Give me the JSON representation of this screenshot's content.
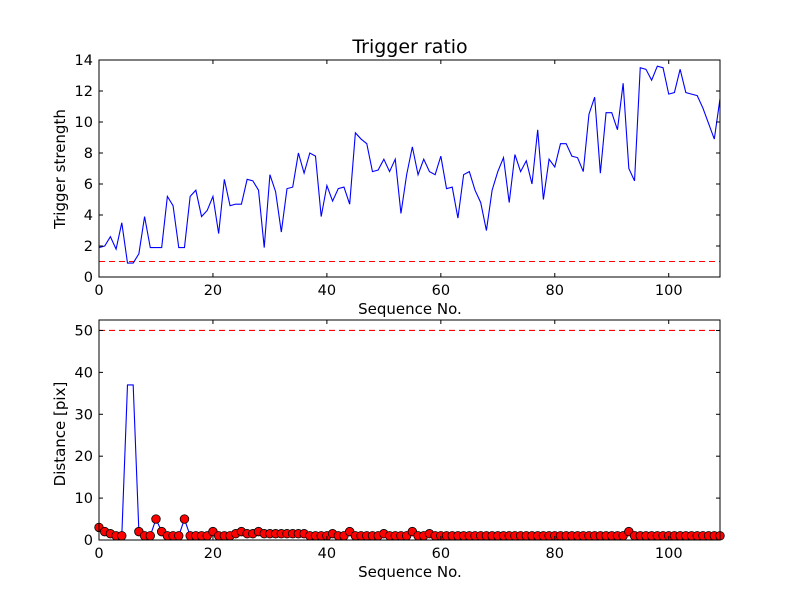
{
  "chart_data": [
    {
      "type": "line",
      "title": "Trigger ratio",
      "xlabel": "Sequence No.",
      "ylabel": "Trigger strength",
      "xlim": [
        0,
        109
      ],
      "ylim": [
        0,
        14
      ],
      "xticks": [
        0,
        20,
        40,
        60,
        80,
        100
      ],
      "yticks": [
        0,
        2,
        4,
        6,
        8,
        10,
        12,
        14
      ],
      "threshold": 1,
      "series": [
        {
          "color": "#0000ff",
          "x": [
            0,
            1,
            2,
            3,
            4,
            5,
            6,
            7,
            8,
            9,
            10,
            11,
            12,
            13,
            14,
            15,
            16,
            17,
            18,
            19,
            20,
            21,
            22,
            23,
            24,
            25,
            26,
            27,
            28,
            29,
            30,
            31,
            32,
            33,
            34,
            35,
            36,
            37,
            38,
            39,
            40,
            41,
            42,
            43,
            44,
            45,
            46,
            47,
            48,
            49,
            50,
            51,
            52,
            53,
            54,
            55,
            56,
            57,
            58,
            59,
            60,
            61,
            62,
            63,
            64,
            65,
            66,
            67,
            68,
            69,
            70,
            71,
            72,
            73,
            74,
            75,
            76,
            77,
            78,
            79,
            80,
            81,
            82,
            83,
            84,
            85,
            86,
            87,
            88,
            89,
            90,
            91,
            92,
            93,
            94,
            95,
            96,
            97,
            98,
            99,
            100,
            101,
            102,
            103,
            104,
            105,
            106,
            107,
            108,
            109
          ],
          "y": [
            1.9,
            2.0,
            2.6,
            1.8,
            3.5,
            0.9,
            0.9,
            1.5,
            3.9,
            1.9,
            1.9,
            1.9,
            5.2,
            4.6,
            1.9,
            1.9,
            5.2,
            5.6,
            3.9,
            4.3,
            5.2,
            2.8,
            6.3,
            4.6,
            4.7,
            4.7,
            6.3,
            6.2,
            5.6,
            1.9,
            6.6,
            5.5,
            2.9,
            5.7,
            5.8,
            8.0,
            6.7,
            8.0,
            7.8,
            3.9,
            5.9,
            4.9,
            5.7,
            5.8,
            4.7,
            9.3,
            8.9,
            8.6,
            6.8,
            6.9,
            7.6,
            6.8,
            7.6,
            4.1,
            6.6,
            8.4,
            6.6,
            7.6,
            6.8,
            6.6,
            7.8,
            5.7,
            5.8,
            3.8,
            6.6,
            6.8,
            5.6,
            4.8,
            3.0,
            5.6,
            6.8,
            7.7,
            4.8,
            7.9,
            6.8,
            7.5,
            6.0,
            9.5,
            5.0,
            7.6,
            7.1,
            8.6,
            8.6,
            7.8,
            7.7,
            6.8,
            10.5,
            11.6,
            6.7,
            10.6,
            10.6,
            9.5,
            12.5,
            7.0,
            6.2,
            13.5,
            13.4,
            12.7,
            13.6,
            13.5,
            11.8,
            11.9,
            13.4,
            11.9,
            11.8,
            11.7,
            10.9,
            9.9,
            8.9,
            11.5
          ]
        }
      ]
    },
    {
      "type": "line",
      "title": "",
      "xlabel": "Sequence No.",
      "ylabel": "Distance [pix]",
      "xlim": [
        0,
        109
      ],
      "ylim": [
        0,
        52.5
      ],
      "xticks": [
        0,
        20,
        40,
        60,
        80,
        100
      ],
      "yticks": [
        0,
        10,
        20,
        30,
        40,
        50
      ],
      "threshold": 50,
      "series": [
        {
          "color": "#0000ff",
          "x": [
            0,
            1,
            2,
            3,
            4,
            5,
            6,
            7,
            8,
            9,
            10,
            11,
            12,
            13,
            14,
            15,
            16,
            17,
            18,
            19,
            20,
            21,
            22,
            23,
            24,
            25,
            26,
            27,
            28,
            29,
            30,
            31,
            32,
            33,
            34,
            35,
            36,
            37,
            38,
            39,
            40,
            41,
            42,
            43,
            44,
            45,
            46,
            47,
            48,
            49,
            50,
            51,
            52,
            53,
            54,
            55,
            56,
            57,
            58,
            59,
            60,
            61,
            62,
            63,
            64,
            65,
            66,
            67,
            68,
            69,
            70,
            71,
            72,
            73,
            74,
            75,
            76,
            77,
            78,
            79,
            80,
            81,
            82,
            83,
            84,
            85,
            86,
            87,
            88,
            89,
            90,
            91,
            92,
            93,
            94,
            95,
            96,
            97,
            98,
            99,
            100,
            101,
            102,
            103,
            104,
            105,
            106,
            107,
            108,
            109
          ],
          "y": [
            3,
            2,
            1.5,
            1,
            1,
            37,
            37,
            2,
            1,
            1,
            5,
            2,
            1,
            1,
            1,
            5,
            1,
            1,
            1,
            1,
            2,
            1,
            1,
            1,
            1.5,
            2,
            1.5,
            1.5,
            2,
            1.5,
            1.5,
            1.5,
            1.5,
            1.5,
            1.5,
            1.5,
            1.5,
            1,
            1,
            1,
            1,
            1.5,
            1,
            1,
            2,
            1,
            1,
            1,
            1,
            1,
            1.5,
            1,
            1,
            1,
            1,
            2,
            1,
            1,
            1.5,
            1,
            1,
            1,
            1,
            1,
            1,
            1,
            1,
            1,
            1,
            1,
            1,
            1,
            1,
            1,
            1,
            1,
            1,
            1,
            1,
            1,
            1,
            1,
            1,
            1,
            1,
            1,
            1,
            1,
            1,
            1,
            1,
            1,
            1,
            2,
            1,
            1,
            1,
            1,
            1,
            1,
            1,
            1,
            1,
            1,
            1,
            1,
            1,
            1,
            1,
            1
          ],
          "markers": "circle",
          "marker_color": "#ff0000",
          "marker_mask": [
            1,
            1,
            1,
            1,
            1,
            0,
            0,
            1,
            1,
            1,
            1,
            1,
            1,
            1,
            1,
            1,
            1,
            1,
            1,
            1,
            1,
            1,
            1,
            1,
            1,
            1,
            1,
            1,
            1,
            1,
            1,
            1,
            1,
            1,
            1,
            1,
            1,
            1,
            1,
            1,
            1,
            1,
            1,
            1,
            1,
            1,
            1,
            1,
            1,
            1,
            1,
            1,
            1,
            1,
            1,
            1,
            1,
            1,
            1,
            1,
            1,
            1,
            1,
            1,
            1,
            1,
            1,
            1,
            1,
            1,
            1,
            1,
            1,
            1,
            1,
            1,
            1,
            1,
            1,
            1,
            1,
            1,
            1,
            1,
            1,
            1,
            1,
            1,
            1,
            1,
            1,
            1,
            1,
            1,
            1,
            1,
            1,
            1,
            1,
            1,
            1,
            1,
            1,
            1,
            1,
            1,
            1,
            1,
            1,
            1
          ]
        }
      ]
    }
  ]
}
